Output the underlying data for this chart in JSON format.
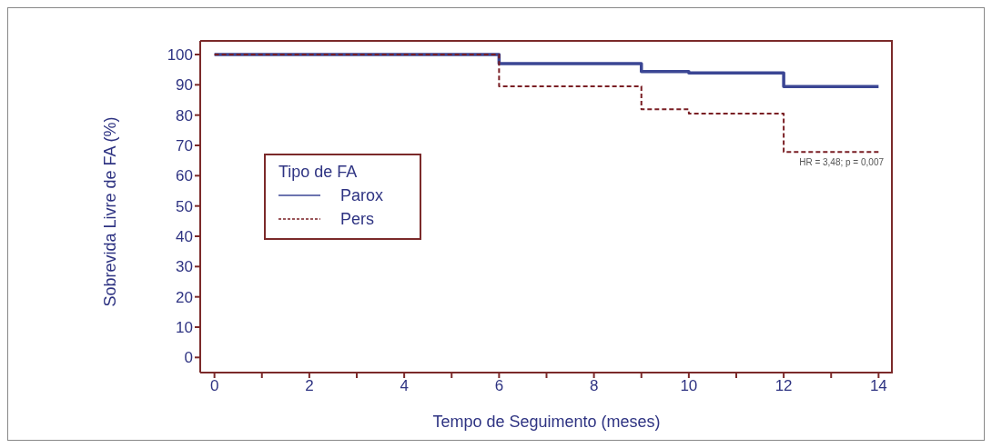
{
  "chart_data": {
    "type": "step",
    "xlabel": "Tempo de Seguimento (meses)",
    "ylabel": "Sobrevida Livre de FA (%)",
    "legend_title": "Tipo de FA",
    "x": [
      0,
      6,
      9,
      10,
      12,
      14
    ],
    "series": [
      {
        "name": "Parox",
        "color": "#3b4694",
        "line_style": "solid",
        "values": [
          100,
          97,
          94.4,
          93.9,
          89.4,
          89.4
        ]
      },
      {
        "name": "Pers",
        "color": "#7a1f24",
        "line_style": "dashed",
        "values": [
          100,
          89.5,
          81.9,
          80.5,
          67.8,
          67.8
        ]
      }
    ],
    "xlim": [
      -0.3,
      14.3
    ],
    "xticks": [
      0,
      {
        "value": 1,
        "label": null
      },
      2,
      {
        "value": 3,
        "label": null
      },
      4,
      {
        "value": 5,
        "label": null
      },
      6,
      {
        "value": 7,
        "label": null
      },
      8,
      {
        "value": 9,
        "label": null
      },
      10,
      {
        "value": 11,
        "label": null
      },
      12,
      {
        "value": 13,
        "label": null
      },
      14
    ],
    "ylim": [
      -5,
      104.5
    ],
    "yticks": [
      0,
      10,
      20,
      30,
      40,
      50,
      60,
      70,
      80,
      90,
      100
    ],
    "grid": false,
    "legend": "left",
    "marker": "none",
    "annotations": [
      "HR = 3,48; p = 0,007"
    ]
  }
}
